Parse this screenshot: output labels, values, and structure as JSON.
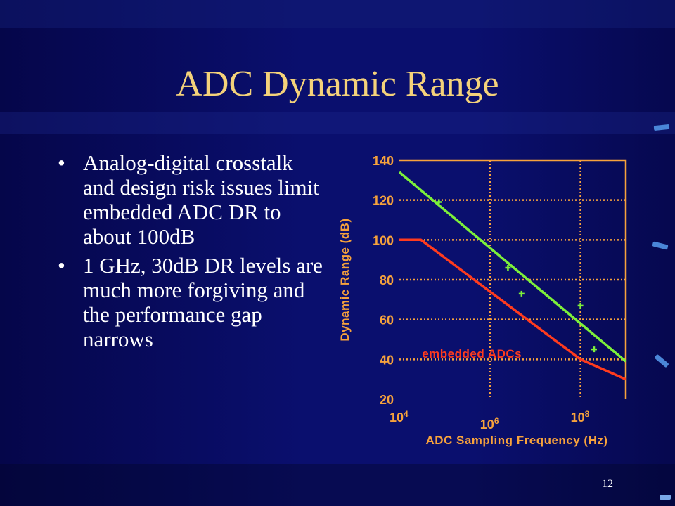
{
  "slide": {
    "title": "ADC Dynamic Range",
    "page_number": "12",
    "bullets": [
      "Analog-digital crosstalk and design risk issues limit embedded ADC DR to about 100dB",
      "1 GHz, 30dB DR levels are much more forgiving and the performance gap narrows"
    ]
  },
  "colors": {
    "title": "#f4d27a",
    "chart_text": "#f7a23c",
    "green_line": "#7df03a",
    "red_line": "#ff3b1e",
    "plot_border": "#f7a23c",
    "grid": "#f7a23c"
  },
  "chart_data": {
    "type": "line",
    "title": "",
    "xlabel": "ADC Sampling Frequency (Hz)",
    "ylabel": "Dynamic Range (dB)",
    "x_scale": "log",
    "xlim": [
      10000,
      1000000000
    ],
    "ylim": [
      20,
      140
    ],
    "x_ticks": [
      {
        "value": 10000,
        "base": "10",
        "exp": "4"
      },
      {
        "value": 1000000,
        "base": "10",
        "exp": "6"
      },
      {
        "value": 100000000,
        "base": "10",
        "exp": "8"
      }
    ],
    "y_ticks": [
      "140",
      "120",
      "100",
      "80",
      "60",
      "40",
      "20"
    ],
    "grid": true,
    "series": [
      {
        "name": "",
        "color": "#7df03a",
        "points": [
          [
            10000,
            134
          ],
          [
            1000000000,
            39
          ]
        ]
      },
      {
        "name": "embedded ADCs",
        "color": "#ff3b1e",
        "points": [
          [
            10000,
            100
          ],
          [
            30000,
            100
          ],
          [
            100000000,
            40
          ],
          [
            1000000000,
            30
          ]
        ]
      }
    ],
    "scatter": {
      "color": "#7df03a",
      "points": [
        [
          75000,
          119
        ],
        [
          2500000,
          86
        ],
        [
          5000000,
          73
        ],
        [
          100000000,
          67
        ],
        [
          200000000,
          45
        ]
      ]
    },
    "annotations": [
      {
        "text": "embedded ADCs",
        "x": 400000,
        "y": 43
      }
    ]
  }
}
